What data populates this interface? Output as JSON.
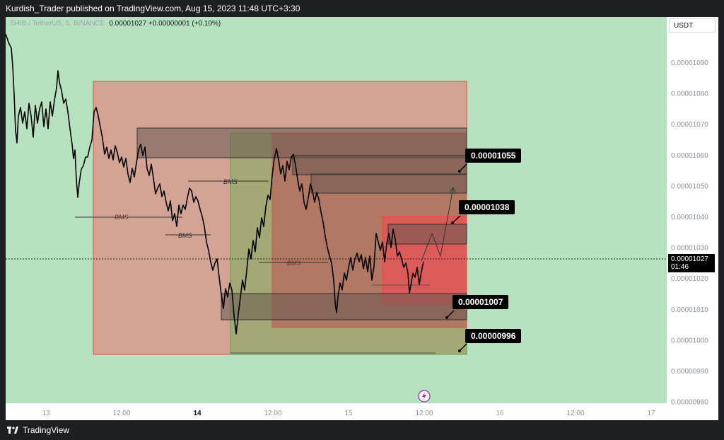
{
  "header": {
    "title": "Kurdish_Trader published on TradingView.com, Aug 15, 2023 11:48 UTC+3:30"
  },
  "legend": {
    "symbol": "SHIB / TetherUS, 5, BINANCE",
    "values": "0.00001027  +0.00000001 (+0.10%)"
  },
  "currency_button": "USDT",
  "price_axis": [
    {
      "label": "0.00001090"
    },
    {
      "label": "0.00001080"
    },
    {
      "label": "0.00001070"
    },
    {
      "label": "0.00001060"
    },
    {
      "label": "0.00001050"
    },
    {
      "label": "0.00001040"
    },
    {
      "label": "0.00001030"
    },
    {
      "label": "0.00001020"
    },
    {
      "label": "0.00001010"
    },
    {
      "label": "0.00001000"
    },
    {
      "label": "0.00000990"
    },
    {
      "label": "0.00000980"
    }
  ],
  "time_axis": [
    "13",
    "12:00",
    "14",
    "12:00",
    "15",
    "12:00",
    "16",
    "12:00",
    "17"
  ],
  "current_price": {
    "value": "0.00001027",
    "countdown": "01:46"
  },
  "price_tags": [
    "0.00001055",
    "0.00001038",
    "0.00001007",
    "0.00000996"
  ],
  "bms_labels": [
    "BMS",
    "BMS",
    "BMS",
    "BMS"
  ],
  "footer": {
    "brand": "TradingView"
  },
  "colors": {
    "background_green": "#b7e2c0",
    "zone_red": "#d4a090",
    "zone_olive": "#9aaa6e",
    "zone_brick": "#b47060",
    "zone_bright_red": "#e05858",
    "ob_box": "#6a5850"
  },
  "chart_data": {
    "type": "line",
    "title": "",
    "xlabel": "",
    "ylabel": "",
    "ylim": [
      9.8e-06,
      1.1e-05
    ],
    "x": [
      "13 00:00",
      "13 06:00",
      "13 12:00",
      "13 18:00",
      "14 00:00",
      "14 06:00",
      "14 12:00",
      "14 18:00",
      "15 00:00",
      "15 06:00",
      "15 11:20"
    ],
    "series": [
      {
        "values": [
          1.092e-05,
          1.072e-05,
          1.074e-05,
          1.05e-05,
          1.06e-05,
          1.037e-05,
          1.007e-05,
          1.06e-05,
          1.042e-05,
          1.02e-05,
          1.027e-05
        ]
      }
    ]
  }
}
